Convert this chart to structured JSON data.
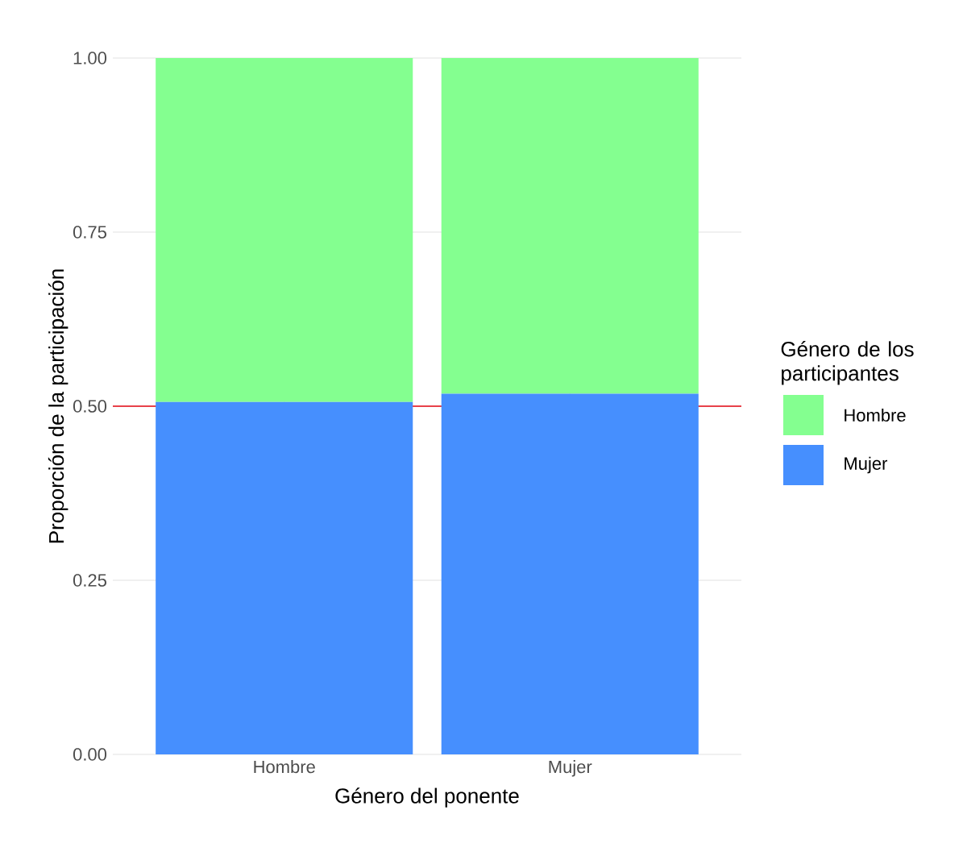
{
  "chart_data": {
    "type": "bar",
    "stacked": true,
    "xlabel": "Género del ponente",
    "ylabel": "Proporción de la participación",
    "legend_title": "Género de los participantes",
    "categories": [
      "Hombre",
      "Mujer"
    ],
    "series": [
      {
        "name": "Mujer",
        "color": "#468ffe",
        "values": [
          0.506,
          0.518
        ]
      },
      {
        "name": "Hombre",
        "color": "#84ff90",
        "values": [
          0.494,
          0.482
        ]
      }
    ],
    "ylim": [
      0,
      1
    ],
    "yticks": [
      {
        "value": 0,
        "label": "0.00"
      },
      {
        "value": 0.25,
        "label": "0.25"
      },
      {
        "value": 0.5,
        "label": "0.50"
      },
      {
        "value": 0.75,
        "label": "0.75"
      },
      {
        "value": 1,
        "label": "1.00"
      }
    ],
    "ref_lines": [
      {
        "axis": "y",
        "value": 0.5,
        "color": "#e8424a"
      }
    ],
    "grid": true,
    "legend": "right"
  }
}
